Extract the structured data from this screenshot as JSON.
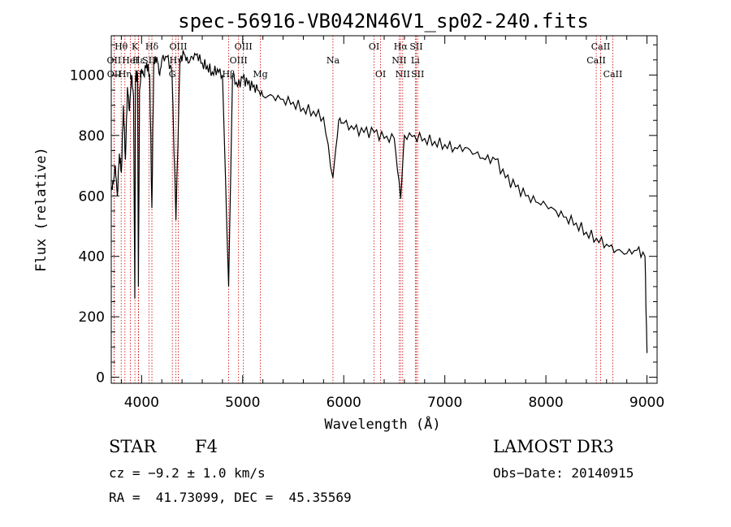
{
  "chart_data": {
    "type": "line",
    "title": "spec-56916-VB042N46V1_sp02-240.fits",
    "xlabel": "Wavelength (Å)",
    "ylabel": "Flux (relative)",
    "xlim": [
      3700,
      9100
    ],
    "ylim": [
      -20,
      1130
    ],
    "x_ticks": [
      4000,
      5000,
      6000,
      7000,
      8000,
      9000
    ],
    "y_ticks": [
      0,
      200,
      400,
      600,
      800,
      1000
    ],
    "series": [
      {
        "name": "spectrum",
        "x": [
          3700,
          3720,
          3740,
          3760,
          3780,
          3800,
          3820,
          3840,
          3860,
          3880,
          3900,
          3920,
          3933,
          3940,
          3960,
          3968,
          3980,
          4000,
          4020,
          4050,
          4080,
          4102,
          4120,
          4150,
          4180,
          4200,
          4250,
          4300,
          4340,
          4380,
          4420,
          4460,
          4500,
          4550,
          4600,
          4650,
          4700,
          4750,
          4800,
          4861,
          4900,
          4950,
          5000,
          5050,
          5100,
          5150,
          5200,
          5300,
          5400,
          5500,
          5600,
          5700,
          5800,
          5893,
          5950,
          6000,
          6100,
          6200,
          6300,
          6400,
          6500,
          6563,
          6600,
          6700,
          6800,
          6900,
          7000,
          7100,
          7200,
          7300,
          7400,
          7500,
          7600,
          7700,
          7800,
          7900,
          8000,
          8100,
          8200,
          8300,
          8400,
          8500,
          8600,
          8700,
          8800,
          8900,
          8980,
          9000
        ],
        "values": [
          620,
          640,
          700,
          600,
          740,
          680,
          900,
          720,
          960,
          880,
          1000,
          930,
          260,
          990,
          1000,
          300,
          950,
          1020,
          1000,
          1040,
          1000,
          560,
          1040,
          1060,
          1000,
          1050,
          1060,
          1010,
          520,
          1050,
          1070,
          1040,
          1060,
          1070,
          1040,
          1030,
          1010,
          1020,
          1000,
          300,
          1000,
          960,
          990,
          970,
          960,
          950,
          930,
          930,
          920,
          910,
          890,
          880,
          860,
          660,
          850,
          840,
          820,
          810,
          810,
          790,
          790,
          590,
          800,
          800,
          790,
          780,
          770,
          760,
          760,
          740,
          720,
          720,
          660,
          630,
          600,
          580,
          570,
          550,
          530,
          510,
          480,
          460,
          440,
          420,
          410,
          420,
          400,
          80
        ]
      }
    ],
    "lines": [
      {
        "label": "Hθ",
        "wavelength": 3798,
        "row": 1
      },
      {
        "label": "OII",
        "wavelength": 3727,
        "row": 2
      },
      {
        "label": "OII",
        "wavelength": 3729,
        "row": 3
      },
      {
        "label": "Hη",
        "wavelength": 3835,
        "row": 3
      },
      {
        "label": "HeI",
        "wavelength": 3889,
        "row": 2
      },
      {
        "label": "K",
        "wavelength": 3934,
        "row": 1
      },
      {
        "label": "H",
        "wavelength": 3968,
        "row": 3
      },
      {
        "label": "Hε",
        "wavelength": 3970,
        "row": 2
      },
      {
        "label": "SII",
        "wavelength": 4072,
        "row": 2
      },
      {
        "label": "Hδ",
        "wavelength": 4102,
        "row": 1
      },
      {
        "label": "OIII",
        "wavelength": 4363,
        "row": 1
      },
      {
        "label": "Hγ",
        "wavelength": 4340,
        "row": 2
      },
      {
        "label": "G",
        "wavelength": 4304,
        "row": 3
      },
      {
        "label": "OIII",
        "wavelength": 5007,
        "row": 1
      },
      {
        "label": "OIII",
        "wavelength": 4959,
        "row": 2
      },
      {
        "label": "Hβ",
        "wavelength": 4861,
        "row": 3
      },
      {
        "label": "Mg",
        "wavelength": 5175,
        "row": 3
      },
      {
        "label": "Na",
        "wavelength": 5893,
        "row": 2
      },
      {
        "label": "OI",
        "wavelength": 6300,
        "row": 1
      },
      {
        "label": "OI",
        "wavelength": 6364,
        "row": 3
      },
      {
        "label": "Hα",
        "wavelength": 6563,
        "row": 1
      },
      {
        "label": "NII",
        "wavelength": 6548,
        "row": 2
      },
      {
        "label": "NII",
        "wavelength": 6583,
        "row": 3
      },
      {
        "label": "SII",
        "wavelength": 6717,
        "row": 1
      },
      {
        "label": "Li",
        "wavelength": 6708,
        "row": 2
      },
      {
        "label": "SII",
        "wavelength": 6731,
        "row": 3
      },
      {
        "label": "CaII",
        "wavelength": 8542,
        "row": 1
      },
      {
        "label": "CaII",
        "wavelength": 8498,
        "row": 2
      },
      {
        "label": "CaII",
        "wavelength": 8662,
        "row": 3
      }
    ]
  },
  "info": {
    "object_class": "STAR",
    "subclass": "F4",
    "redshift": "cz = −9.2 ± 1.0 km/s",
    "coords": "RA =  41.73099, DEC =  45.35569",
    "survey": "LAMOST DR3",
    "obs_date": "Obs−Date: 20140915"
  },
  "colors": {
    "line_marker": "#cc0000",
    "spectrum": "#000000"
  }
}
